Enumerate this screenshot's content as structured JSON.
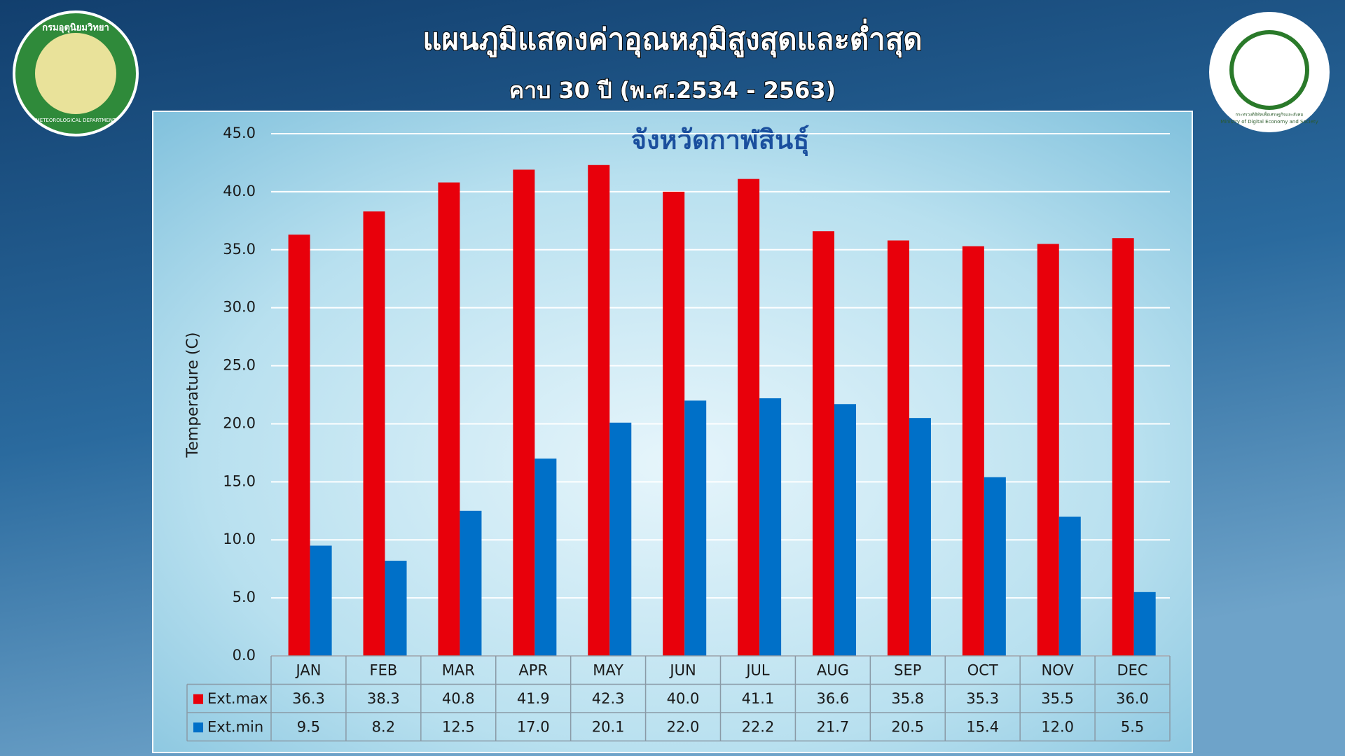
{
  "chart_data": {
    "type": "bar",
    "title": "แผนภูมิแสดงค่าอุณหภูมิสูงสุดและต่ำสุด",
    "subtitle": "คาบ 30 ปี (พ.ศ.2534 - 2563)",
    "chart_title": "จังหวัดกาฬสินธุ์",
    "y_label": "Temperature (C)",
    "categories": [
      "JAN",
      "FEB",
      "MAR",
      "APR",
      "MAY",
      "JUN",
      "JUL",
      "AUG",
      "SEP",
      "OCT",
      "NOV",
      "DEC"
    ],
    "series": [
      {
        "name": "Ext.max",
        "color": "#e8000b",
        "values": [
          36.3,
          38.3,
          40.8,
          41.9,
          42.3,
          40.0,
          41.1,
          36.6,
          35.8,
          35.3,
          35.5,
          36.0
        ],
        "value_labels": [
          "36.3",
          "38.3",
          "40.8",
          "41.9",
          "42.3",
          "40.0",
          "41.1",
          "36.6",
          "35.8",
          "35.3",
          "35.5",
          "36.0"
        ]
      },
      {
        "name": "Ext.min",
        "color": "#0070c8",
        "values": [
          9.5,
          8.2,
          12.5,
          17.0,
          20.1,
          22.0,
          22.2,
          21.7,
          20.5,
          15.4,
          12.0,
          5.5
        ],
        "value_labels": [
          "9.5",
          "8.2",
          "12.5",
          "17.0",
          "20.1",
          "22.0",
          "22.2",
          "21.7",
          "20.5",
          "15.4",
          "12.0",
          "5.5"
        ]
      }
    ],
    "ylim": [
      0,
      45
    ],
    "yticks": [
      {
        "value": 0,
        "label": "0.0"
      },
      {
        "value": 5,
        "label": "5.0"
      },
      {
        "value": 10,
        "label": "10.0"
      },
      {
        "value": 15,
        "label": "15.0"
      },
      {
        "value": 20,
        "label": "20.0"
      },
      {
        "value": 25,
        "label": "25.0"
      },
      {
        "value": 30,
        "label": "30.0"
      },
      {
        "value": 35,
        "label": "35.0"
      },
      {
        "value": 40,
        "label": "40.0"
      },
      {
        "value": 45,
        "label": "45.0"
      }
    ],
    "grid": true,
    "data_table": true
  },
  "logos": {
    "left": {
      "thai": "กรมอุตุนิยมวิทยา",
      "english": "METEOROLOGICAL DEPARTMENT"
    },
    "right": {
      "thai": "กระทรวงดิจิทัลเพื่อเศรษฐกิจและสังคม",
      "english": "Ministry of Digital Economy and Society"
    }
  }
}
